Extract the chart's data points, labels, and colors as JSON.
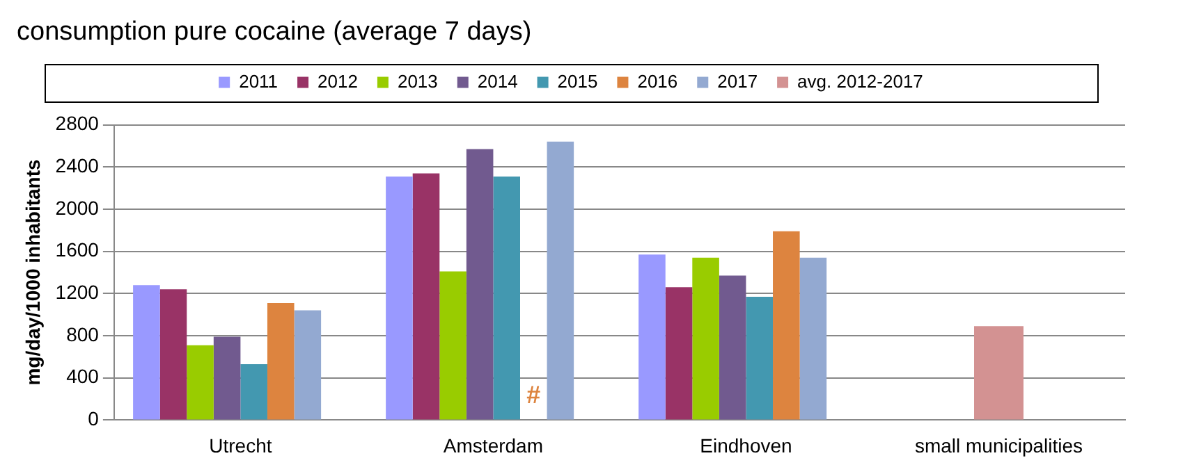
{
  "chart_data": {
    "type": "bar",
    "title": "consumption pure cocaine (average 7 days)",
    "ylabel": "mg/day/1000 inhabitants",
    "categories": [
      "Utrecht",
      "Amsterdam",
      "Eindhoven",
      "small municipalities"
    ],
    "series": [
      {
        "name": "2011",
        "color": "#9999ff",
        "values": [
          1280,
          2310,
          1570,
          null
        ]
      },
      {
        "name": "2012",
        "color": "#993366",
        "values": [
          1240,
          2340,
          1260,
          null
        ]
      },
      {
        "name": "2013",
        "color": "#99cc00",
        "values": [
          710,
          1410,
          1540,
          null
        ]
      },
      {
        "name": "2014",
        "color": "#715a8f",
        "values": [
          790,
          2570,
          1370,
          null
        ]
      },
      {
        "name": "2015",
        "color": "#4398b0",
        "values": [
          530,
          2310,
          1170,
          null
        ]
      },
      {
        "name": "2016",
        "color": "#dd843f",
        "values": [
          1110,
          null,
          1790,
          null
        ]
      },
      {
        "name": "2017",
        "color": "#93a9d1",
        "values": [
          1040,
          2640,
          1540,
          null
        ]
      },
      {
        "name": "avg. 2012-2017",
        "color": "#d39292",
        "values": [
          null,
          null,
          null,
          890
        ]
      }
    ],
    "ylim": [
      0,
      2800
    ],
    "yticks": [
      0,
      400,
      800,
      1200,
      1600,
      2000,
      2400,
      2800
    ],
    "grid": "y",
    "legend": "top",
    "annotations": [
      {
        "text": "#",
        "x": "Amsterdam"
      }
    ]
  }
}
